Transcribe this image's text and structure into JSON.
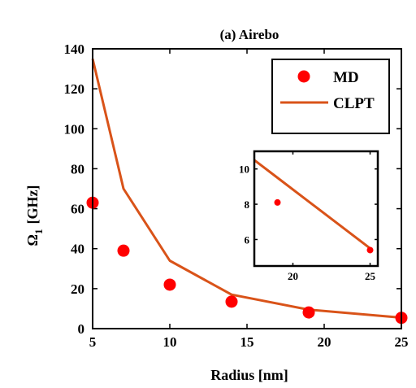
{
  "chart_data": [
    {
      "type": "line",
      "title": "(a) Airebo",
      "xlabel": "Radius [nm]",
      "ylabel_main": "Ω",
      "ylabel_sub": "1",
      "ylabel_unit": "[GHz]",
      "xlim": [
        5,
        25
      ],
      "ylim": [
        0,
        140
      ],
      "xticks": [
        5,
        10,
        15,
        20,
        25
      ],
      "yticks": [
        0,
        20,
        40,
        60,
        80,
        100,
        120,
        140
      ],
      "grid": false,
      "legend": "top-right",
      "series": [
        {
          "name": "MD",
          "style": "markers",
          "color": "#ff0000",
          "x": [
            5,
            7,
            10,
            14,
            19,
            25
          ],
          "y": [
            63,
            39,
            22,
            13.5,
            8.1,
            5.4
          ]
        },
        {
          "name": "CLPT",
          "style": "line",
          "color": "#d95319",
          "x": [
            5,
            7,
            10,
            14,
            19,
            25
          ],
          "y": [
            135,
            70,
            34,
            17,
            9.5,
            5.5
          ]
        }
      ]
    },
    {
      "type": "line",
      "role": "inset",
      "xlim": [
        17.5,
        25.5
      ],
      "ylim": [
        4.5,
        11
      ],
      "xticks": [
        20,
        25
      ],
      "yticks": [
        6,
        8,
        10
      ],
      "series": [
        {
          "style": "markers",
          "color": "#ff0000",
          "x": [
            19,
            25
          ],
          "y": [
            8.1,
            5.4
          ]
        },
        {
          "style": "line",
          "color": "#d95319",
          "x": [
            17.5,
            19,
            25
          ],
          "y": [
            10.5,
            9.5,
            5.5
          ]
        }
      ]
    }
  ]
}
